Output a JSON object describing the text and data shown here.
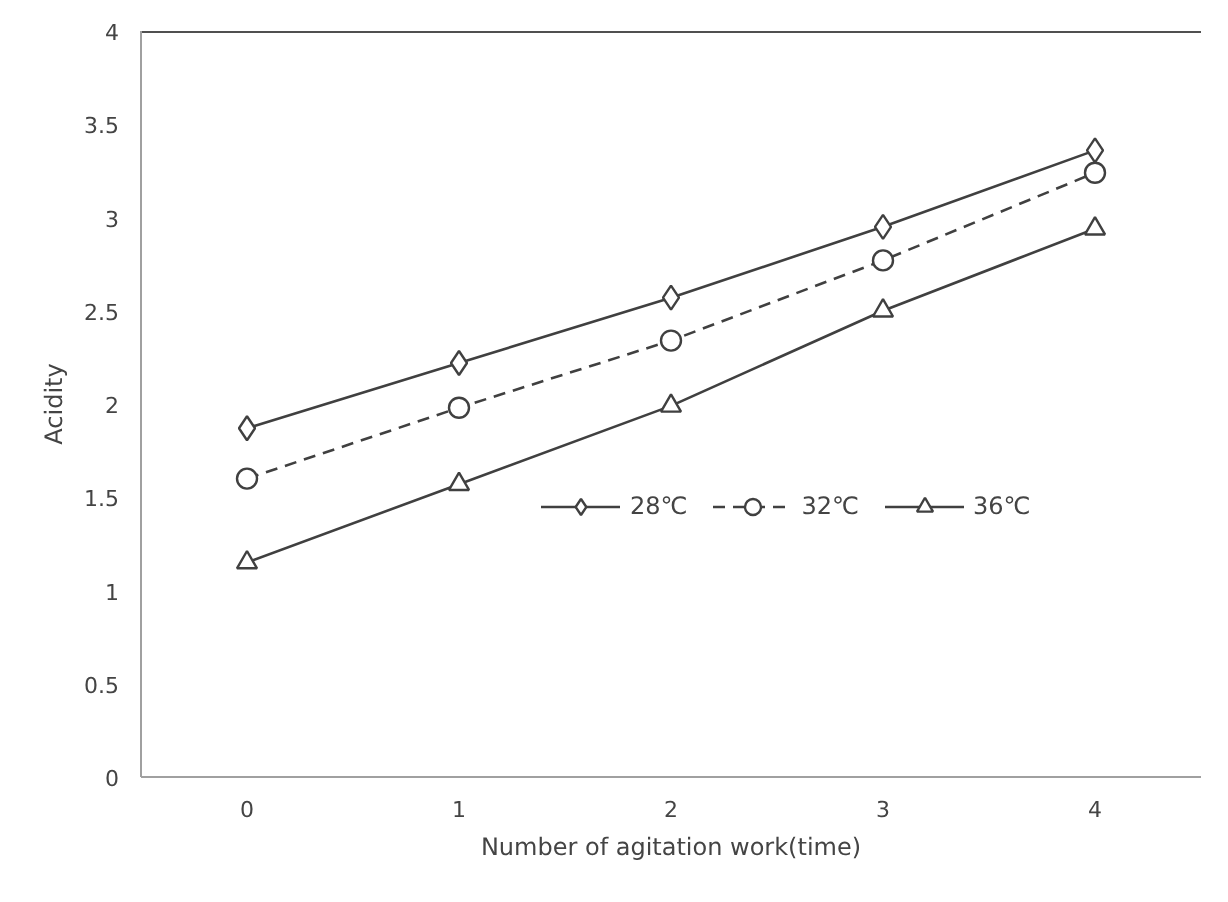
{
  "chart_data": {
    "type": "line",
    "xlabel": "Number of agitation work(time)",
    "ylabel": "Acidity",
    "x": [
      0,
      1,
      2,
      3,
      4
    ],
    "xlim": [
      -0.5,
      4.5
    ],
    "xticks": [
      0,
      1,
      2,
      3,
      4
    ],
    "ylim": [
      0,
      4
    ],
    "yticks": [
      0,
      0.5,
      1,
      1.5,
      2,
      2.5,
      3,
      3.5,
      4
    ],
    "grid": false,
    "legend": "bottom right",
    "series": [
      {
        "name": "28℃",
        "color": "#404040",
        "marker": "diamond",
        "line_style": "solid",
        "values": [
          1.87,
          2.22,
          2.57,
          2.95,
          3.36
        ]
      },
      {
        "name": "32℃",
        "color": "#404040",
        "marker": "circle",
        "line_style": "dashed",
        "values": [
          1.6,
          1.98,
          2.34,
          2.77,
          3.24
        ]
      },
      {
        "name": "36℃",
        "color": "#404040",
        "marker": "triangle",
        "line_style": "solid",
        "values": [
          1.15,
          1.57,
          1.99,
          2.5,
          2.94
        ]
      }
    ]
  }
}
